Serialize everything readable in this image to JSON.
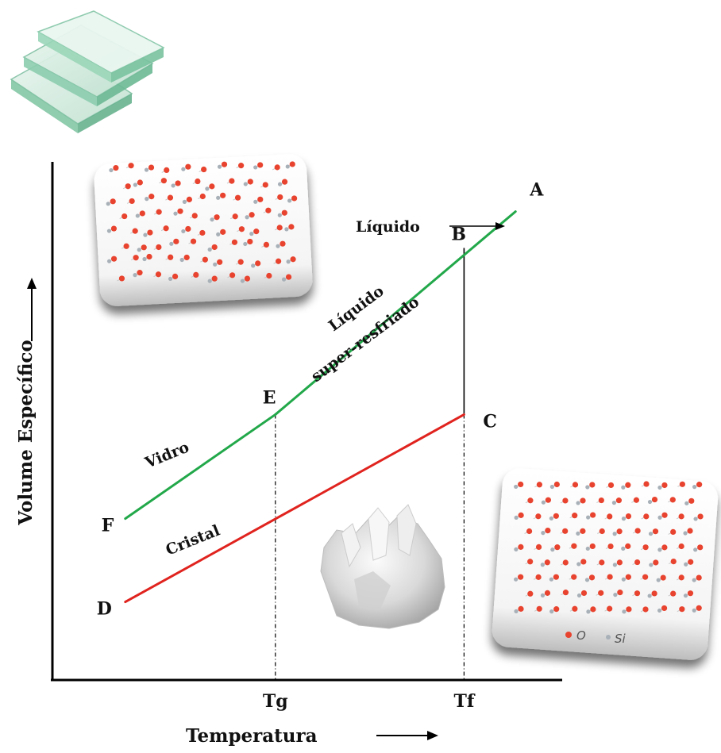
{
  "chart_data": {
    "type": "line",
    "xlabel": "Temperatura",
    "ylabel": "Volume Específico",
    "x_ticks": [
      "Tg",
      "Tf"
    ],
    "points": [
      {
        "name": "A",
        "x": 10.8,
        "y": 9.0
      },
      {
        "name": "B",
        "x": 9.6,
        "y": 8.3
      },
      {
        "name": "C",
        "x": 9.6,
        "y": 5.1
      },
      {
        "name": "D",
        "x": 1.7,
        "y": 1.5
      },
      {
        "name": "E",
        "x": 5.2,
        "y": 5.1
      },
      {
        "name": "F",
        "x": 1.7,
        "y": 3.1
      }
    ],
    "series": [
      {
        "name": "Líquido super-resfriado",
        "color": "#22a84a",
        "x": [
          5.2,
          10.8
        ],
        "y": [
          5.1,
          9.0
        ]
      },
      {
        "name": "Vidro",
        "color": "#22a84a",
        "x": [
          1.7,
          5.2
        ],
        "y": [
          3.1,
          5.1
        ]
      },
      {
        "name": "Cristal",
        "color": "#e0231e",
        "x": [
          1.7,
          9.6
        ],
        "y": [
          1.5,
          5.1
        ]
      }
    ],
    "annotations": [
      "Líquido",
      "Líquido",
      "super-resfriado",
      "Vidro",
      "Cristal"
    ]
  },
  "legend": {
    "o_label": "O",
    "si_label": "Si"
  },
  "colors": {
    "glass_line": "#22a84a",
    "crystal_line": "#e0231e",
    "oxygen_atom": "#e8432e",
    "silicon_atom": "#a8b0b8"
  }
}
